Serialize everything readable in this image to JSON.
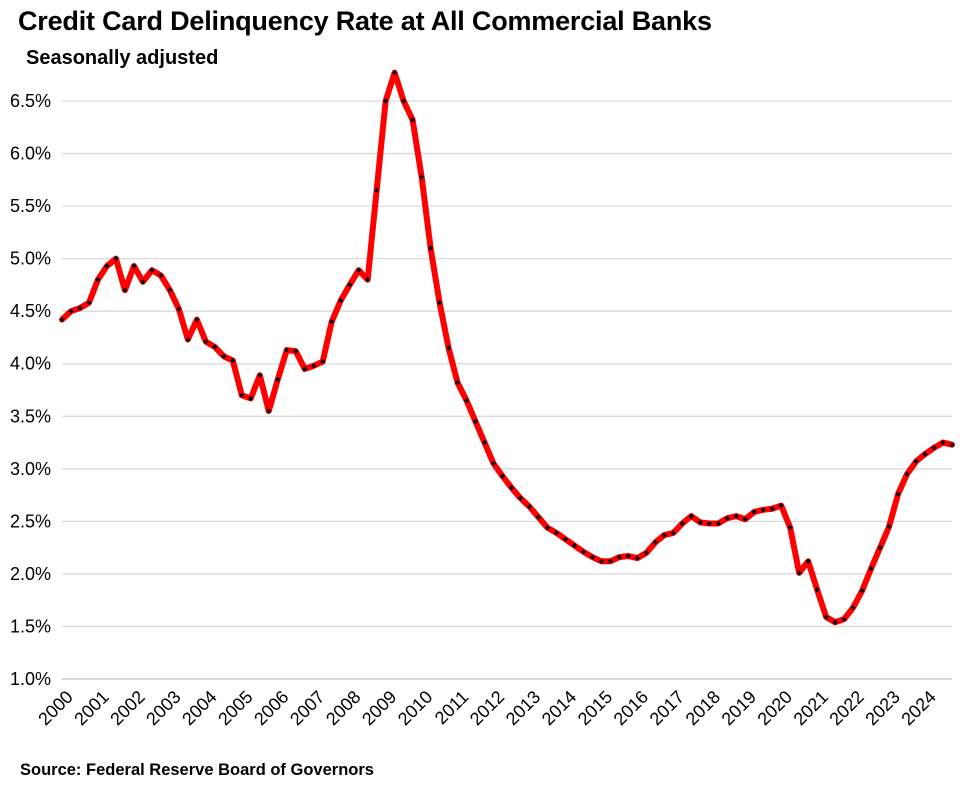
{
  "chart_data": {
    "type": "line",
    "title": "Credit Card Delinquency Rate at All Commercial Banks",
    "subtitle": "Seasonally adjusted",
    "source": "Source: Federal Reserve Board of Governors",
    "xlabel": "",
    "ylabel": "",
    "ylim": [
      1.0,
      6.5
    ],
    "xlim": [
      2000.0,
      2024.75
    ],
    "yticks": [
      "1.0%",
      "1.5%",
      "2.0%",
      "2.5%",
      "3.0%",
      "3.5%",
      "4.0%",
      "4.5%",
      "5.0%",
      "5.5%",
      "6.0%",
      "6.5%"
    ],
    "ytick_values": [
      1.0,
      1.5,
      2.0,
      2.5,
      3.0,
      3.5,
      4.0,
      4.5,
      5.0,
      5.5,
      6.0,
      6.5
    ],
    "xticks": [
      "2000",
      "2001",
      "2002",
      "2003",
      "2004",
      "2005",
      "2006",
      "2007",
      "2008",
      "2009",
      "2010",
      "2011",
      "2012",
      "2013",
      "2014",
      "2015",
      "2016",
      "2017",
      "2018",
      "2019",
      "2020",
      "2021",
      "2022",
      "2023",
      "2024"
    ],
    "grid": "horizontal",
    "legend": "none",
    "line_color": "#ff0000",
    "marker_color": "#000000",
    "series": [
      {
        "x": [
          2000.0,
          2000.25,
          2000.5,
          2000.75,
          2001.0,
          2001.25,
          2001.5,
          2001.75,
          2002.0,
          2002.25,
          2002.5,
          2002.75,
          2003.0,
          2003.25,
          2003.5,
          2003.75,
          2004.0,
          2004.25,
          2004.5,
          2004.75,
          2005.0,
          2005.25,
          2005.5,
          2005.75,
          2006.0,
          2006.25,
          2006.5,
          2006.75,
          2007.0,
          2007.25,
          2007.5,
          2007.75,
          2008.0,
          2008.25,
          2008.5,
          2008.75,
          2009.0,
          2009.25,
          2009.5,
          2009.75,
          2010.0,
          2010.25,
          2010.5,
          2010.75,
          2011.0,
          2011.25,
          2011.5,
          2011.75,
          2012.0,
          2012.25,
          2012.5,
          2012.75,
          2013.0,
          2013.25,
          2013.5,
          2013.75,
          2014.0,
          2014.25,
          2014.5,
          2014.75,
          2015.0,
          2015.25,
          2015.5,
          2015.75,
          2016.0,
          2016.25,
          2016.5,
          2016.75,
          2017.0,
          2017.25,
          2017.5,
          2017.75,
          2018.0,
          2018.25,
          2018.5,
          2018.75,
          2019.0,
          2019.25,
          2019.5,
          2019.75,
          2020.0,
          2020.25,
          2020.5,
          2020.75,
          2021.0,
          2021.25,
          2021.5,
          2021.75,
          2022.0,
          2022.25,
          2022.5,
          2022.75,
          2023.0,
          2023.25,
          2023.5,
          2023.75,
          2024.0,
          2024.25,
          2024.5,
          2024.75
        ],
        "values": [
          4.42,
          4.5,
          4.53,
          4.58,
          4.8,
          4.93,
          5.0,
          4.7,
          4.93,
          4.78,
          4.89,
          4.84,
          4.7,
          4.52,
          4.23,
          4.42,
          4.21,
          4.16,
          4.07,
          4.03,
          3.7,
          3.67,
          3.89,
          3.55,
          3.85,
          4.13,
          4.12,
          3.95,
          3.98,
          4.02,
          4.4,
          4.6,
          4.75,
          4.89,
          4.8,
          5.65,
          6.5,
          6.77,
          6.5,
          6.32,
          5.78,
          5.1,
          4.58,
          4.15,
          3.82,
          3.65,
          3.45,
          3.25,
          3.05,
          2.93,
          2.82,
          2.72,
          2.64,
          2.54,
          2.44,
          2.39,
          2.33,
          2.27,
          2.21,
          2.16,
          2.12,
          2.12,
          2.16,
          2.17,
          2.15,
          2.2,
          2.3,
          2.37,
          2.39,
          2.48,
          2.55,
          2.49,
          2.48,
          2.48,
          2.53,
          2.55,
          2.52,
          2.59,
          2.61,
          2.62,
          2.65,
          2.44,
          2.01,
          2.12,
          1.85,
          1.59,
          1.54,
          1.57,
          1.68,
          1.84,
          2.05,
          2.25,
          2.45,
          2.76,
          2.95,
          3.07,
          3.14,
          3.2,
          3.25,
          3.23
        ]
      }
    ]
  }
}
